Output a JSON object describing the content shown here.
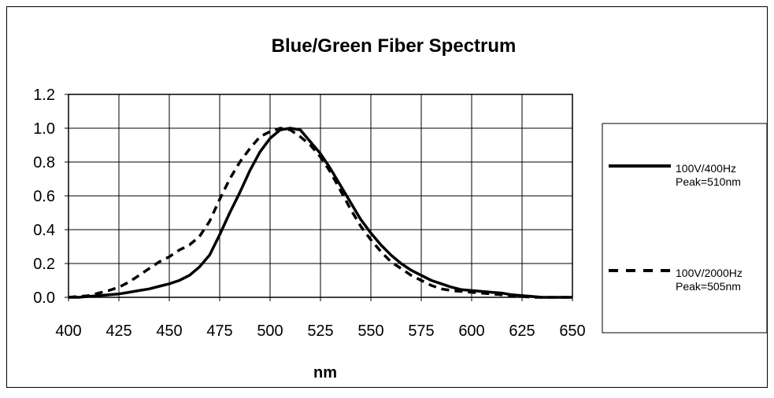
{
  "chart_data": {
    "type": "line",
    "title": "Blue/Green Fiber Spectrum",
    "xlabel": "nm",
    "ylabel": "",
    "xlim": [
      400,
      650
    ],
    "ylim": [
      0.0,
      1.2
    ],
    "xticks": [
      "400",
      "425",
      "450",
      "475",
      "500",
      "525",
      "550",
      "575",
      "600",
      "625",
      "650"
    ],
    "yticks": [
      "0.0",
      "0.2",
      "0.4",
      "0.6",
      "0.8",
      "1.0",
      "1.2"
    ],
    "grid": true,
    "legend_position": "right",
    "series": [
      {
        "name_lines": [
          "100V/400Hz",
          "Peak=510nm"
        ],
        "style": "solid",
        "color": "#000000",
        "x": [
          400,
          405,
          410,
          415,
          420,
          425,
          430,
          435,
          440,
          445,
          450,
          455,
          460,
          465,
          470,
          475,
          480,
          485,
          490,
          495,
          500,
          505,
          510,
          515,
          520,
          525,
          530,
          535,
          540,
          545,
          550,
          555,
          560,
          565,
          570,
          575,
          580,
          585,
          590,
          595,
          600,
          605,
          610,
          615,
          620,
          625,
          630,
          635,
          640,
          645,
          650
        ],
        "y": [
          0.0,
          0.0,
          0.005,
          0.01,
          0.015,
          0.02,
          0.03,
          0.04,
          0.05,
          0.065,
          0.08,
          0.1,
          0.13,
          0.18,
          0.25,
          0.37,
          0.5,
          0.62,
          0.75,
          0.86,
          0.94,
          0.99,
          1.0,
          0.99,
          0.92,
          0.85,
          0.76,
          0.66,
          0.56,
          0.46,
          0.38,
          0.31,
          0.25,
          0.2,
          0.16,
          0.13,
          0.1,
          0.08,
          0.06,
          0.045,
          0.04,
          0.035,
          0.03,
          0.025,
          0.015,
          0.01,
          0.005,
          0.0,
          0.0,
          0.0,
          0.0
        ]
      },
      {
        "name_lines": [
          "100V/2000Hz",
          "Peak=505nm"
        ],
        "style": "dashed",
        "color": "#000000",
        "x": [
          400,
          405,
          410,
          415,
          420,
          425,
          430,
          435,
          440,
          445,
          450,
          455,
          460,
          465,
          470,
          475,
          480,
          485,
          490,
          495,
          500,
          505,
          510,
          515,
          520,
          525,
          530,
          535,
          540,
          545,
          550,
          555,
          560,
          565,
          570,
          575,
          580,
          585,
          590,
          595,
          600,
          605,
          610,
          615,
          620,
          625,
          630,
          635,
          640,
          645,
          650
        ],
        "y": [
          0.0,
          0.005,
          0.01,
          0.025,
          0.04,
          0.06,
          0.09,
          0.13,
          0.17,
          0.21,
          0.24,
          0.28,
          0.31,
          0.36,
          0.45,
          0.58,
          0.7,
          0.8,
          0.88,
          0.95,
          0.98,
          1.0,
          0.99,
          0.95,
          0.9,
          0.83,
          0.74,
          0.63,
          0.52,
          0.42,
          0.34,
          0.27,
          0.21,
          0.17,
          0.13,
          0.1,
          0.07,
          0.05,
          0.04,
          0.035,
          0.03,
          0.025,
          0.02,
          0.015,
          0.01,
          0.005,
          0.0,
          0.0,
          0.0,
          0.0,
          0.0
        ]
      }
    ]
  }
}
